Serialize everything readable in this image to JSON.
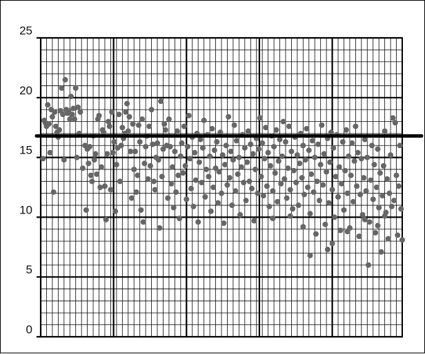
{
  "chart_data": {
    "type": "scatter",
    "title": "",
    "xlabel": "",
    "ylabel": "",
    "ylim": [
      0,
      25
    ],
    "xlim": [
      0,
      31
    ],
    "y_ticks": [
      "0",
      "5",
      "10",
      "15",
      "20",
      "25"
    ],
    "grid": true,
    "grid_minor_step_y": 1,
    "grid_minor_step_x": 0.5,
    "grid_major_step_x": 6.25,
    "reference_line_y": 16.8,
    "colors": {
      "points": "#666666",
      "grid_minor": "#000000",
      "grid_major": "#000000",
      "reference_line": "#000000"
    },
    "points": [
      [
        0.2,
        14.9
      ],
      [
        0.3,
        18.1
      ],
      [
        0.4,
        17.9
      ],
      [
        0.5,
        17.6
      ],
      [
        0.6,
        19.4
      ],
      [
        0.7,
        17.8
      ],
      [
        0.8,
        15.4
      ],
      [
        0.9,
        19.0
      ],
      [
        1.0,
        18.4
      ],
      [
        1.1,
        12.1
      ],
      [
        1.2,
        18.8
      ],
      [
        1.3,
        17.6
      ],
      [
        1.4,
        17.1
      ],
      [
        1.5,
        16.7
      ],
      [
        1.6,
        17.3
      ],
      [
        1.7,
        18.9
      ],
      [
        1.8,
        20.8
      ],
      [
        1.9,
        18.6
      ],
      [
        2.0,
        14.8
      ],
      [
        2.1,
        21.5
      ],
      [
        2.2,
        19.0
      ],
      [
        2.3,
        18.7
      ],
      [
        2.4,
        18.9
      ],
      [
        2.5,
        18.2
      ],
      [
        2.6,
        20.1
      ],
      [
        2.7,
        18.6
      ],
      [
        2.8,
        19.1
      ],
      [
        2.9,
        18.2
      ],
      [
        3.0,
        20.8
      ],
      [
        3.1,
        15.0
      ],
      [
        3.2,
        19.2
      ],
      [
        3.3,
        17.0
      ],
      [
        3.4,
        18.8
      ],
      [
        3.6,
        14.1
      ],
      [
        3.8,
        16.0
      ],
      [
        3.9,
        10.6
      ],
      [
        4.0,
        15.7
      ],
      [
        4.1,
        14.5
      ],
      [
        4.2,
        15.9
      ],
      [
        4.3,
        13.5
      ],
      [
        4.4,
        13.0
      ],
      [
        4.5,
        16.8
      ],
      [
        4.6,
        14.8
      ],
      [
        4.7,
        15.3
      ],
      [
        4.8,
        13.6
      ],
      [
        4.9,
        18.2
      ],
      [
        5.0,
        18.5
      ],
      [
        5.1,
        12.5
      ],
      [
        5.2,
        14.2
      ],
      [
        5.3,
        17.3
      ],
      [
        5.4,
        17.1
      ],
      [
        5.5,
        12.6
      ],
      [
        5.6,
        9.8
      ],
      [
        5.7,
        15.3
      ],
      [
        5.8,
        18.0
      ],
      [
        5.9,
        17.6
      ],
      [
        6.0,
        12.3
      ],
      [
        6.1,
        18.8
      ],
      [
        6.2,
        15.4
      ],
      [
        6.3,
        16.3
      ],
      [
        6.4,
        10.5
      ],
      [
        6.5,
        14.4
      ],
      [
        6.6,
        15.8
      ],
      [
        6.7,
        18.6
      ],
      [
        6.8,
        13.0
      ],
      [
        6.9,
        16.0
      ],
      [
        7.0,
        17.5
      ],
      [
        7.1,
        16.6
      ],
      [
        7.2,
        17.0
      ],
      [
        7.3,
        18.8
      ],
      [
        7.4,
        19.5
      ],
      [
        7.5,
        17.2
      ],
      [
        7.6,
        18.4
      ],
      [
        7.7,
        15.5
      ],
      [
        7.8,
        11.6
      ],
      [
        7.9,
        17.8
      ],
      [
        8.0,
        14.0
      ],
      [
        8.1,
        15.5
      ],
      [
        8.2,
        12.1
      ],
      [
        8.3,
        13.5
      ],
      [
        8.4,
        17.7
      ],
      [
        8.5,
        16.3
      ],
      [
        8.6,
        10.6
      ],
      [
        8.7,
        18.2
      ],
      [
        8.8,
        9.6
      ],
      [
        8.9,
        14.5
      ],
      [
        9.0,
        15.9
      ],
      [
        9.1,
        16.8
      ],
      [
        9.2,
        13.2
      ],
      [
        9.3,
        17.6
      ],
      [
        9.4,
        14.3
      ],
      [
        9.5,
        19.0
      ],
      [
        9.6,
        16.1
      ],
      [
        9.7,
        13.0
      ],
      [
        9.8,
        12.3
      ],
      [
        9.9,
        15.0
      ],
      [
        10.0,
        16.2
      ],
      [
        10.1,
        14.8
      ],
      [
        10.2,
        9.1
      ],
      [
        10.3,
        19.7
      ],
      [
        10.4,
        13.4
      ],
      [
        10.5,
        15.7
      ],
      [
        10.6,
        17.8
      ],
      [
        10.7,
        17.3
      ],
      [
        10.8,
        16.0
      ],
      [
        10.9,
        11.6
      ],
      [
        11.0,
        18.2
      ],
      [
        11.1,
        15.9
      ],
      [
        11.2,
        12.8
      ],
      [
        11.3,
        14.2
      ],
      [
        11.4,
        10.8
      ],
      [
        11.5,
        15.5
      ],
      [
        11.6,
        12.1
      ],
      [
        11.7,
        17.2
      ],
      [
        11.8,
        13.5
      ],
      [
        11.9,
        9.9
      ],
      [
        12.0,
        15.1
      ],
      [
        12.1,
        16.2
      ],
      [
        12.2,
        13.7
      ],
      [
        12.3,
        17.6
      ],
      [
        12.4,
        14.3
      ],
      [
        12.5,
        11.5
      ],
      [
        12.6,
        15.9
      ],
      [
        12.7,
        18.5
      ],
      [
        12.8,
        14.9
      ],
      [
        12.9,
        12.4
      ],
      [
        13.0,
        16.7
      ],
      [
        13.1,
        10.9
      ],
      [
        13.2,
        15.4
      ],
      [
        13.3,
        13.1
      ],
      [
        13.4,
        17.0
      ],
      [
        13.5,
        9.6
      ],
      [
        13.6,
        14.6
      ],
      [
        13.7,
        16.5
      ],
      [
        13.8,
        12.9
      ],
      [
        13.9,
        15.8
      ],
      [
        14.0,
        18.1
      ],
      [
        14.1,
        11.7
      ],
      [
        14.2,
        14.0
      ],
      [
        14.3,
        16.9
      ],
      [
        14.4,
        13.4
      ],
      [
        14.5,
        15.1
      ],
      [
        14.6,
        10.5
      ],
      [
        14.7,
        17.4
      ],
      [
        14.8,
        12.5
      ],
      [
        14.9,
        15.6
      ],
      [
        15.0,
        14.1
      ],
      [
        15.1,
        16.3
      ],
      [
        15.2,
        11.2
      ],
      [
        15.3,
        13.8
      ],
      [
        15.4,
        17.1
      ],
      [
        15.5,
        12.0
      ],
      [
        15.6,
        15.2
      ],
      [
        15.7,
        9.5
      ],
      [
        15.8,
        14.4
      ],
      [
        15.9,
        16.0
      ],
      [
        16.0,
        12.7
      ],
      [
        16.1,
        18.4
      ],
      [
        16.2,
        13.3
      ],
      [
        16.3,
        15.5
      ],
      [
        16.4,
        11.0
      ],
      [
        16.5,
        14.8
      ],
      [
        16.6,
        17.7
      ],
      [
        16.7,
        12.2
      ],
      [
        16.8,
        16.4
      ],
      [
        16.9,
        13.6
      ],
      [
        17.0,
        15.0
      ],
      [
        17.1,
        10.2
      ],
      [
        17.2,
        14.2
      ],
      [
        17.3,
        16.9
      ],
      [
        17.4,
        12.9
      ],
      [
        17.5,
        15.8
      ],
      [
        17.6,
        11.4
      ],
      [
        17.7,
        14.6
      ],
      [
        17.8,
        17.2
      ],
      [
        17.9,
        13.0
      ],
      [
        18.0,
        16.1
      ],
      [
        18.1,
        12.4
      ],
      [
        18.2,
        15.3
      ],
      [
        18.3,
        9.7
      ],
      [
        18.4,
        14.0
      ],
      [
        18.5,
        16.6
      ],
      [
        18.6,
        12.0
      ],
      [
        18.7,
        15.7
      ],
      [
        18.8,
        18.3
      ],
      [
        18.9,
        13.4
      ],
      [
        19.0,
        16.2
      ],
      [
        19.1,
        11.8
      ],
      [
        19.2,
        14.9
      ],
      [
        19.3,
        17.5
      ],
      [
        19.4,
        12.6
      ],
      [
        19.5,
        15.4
      ],
      [
        19.6,
        10.9
      ],
      [
        19.7,
        14.3
      ],
      [
        19.8,
        16.8
      ],
      [
        19.9,
        12.2
      ],
      [
        20.0,
        15.9
      ],
      [
        20.1,
        13.7
      ],
      [
        20.2,
        17.3
      ],
      [
        20.3,
        11.3
      ],
      [
        20.4,
        14.7
      ],
      [
        20.5,
        16.5
      ],
      [
        20.6,
        12.8
      ],
      [
        20.7,
        15.1
      ],
      [
        20.8,
        18.0
      ],
      [
        20.9,
        13.2
      ],
      [
        21.0,
        16.3
      ],
      [
        21.1,
        11.6
      ],
      [
        21.2,
        14.1
      ],
      [
        21.3,
        17.6
      ],
      [
        21.4,
        12.3
      ],
      [
        21.5,
        15.5
      ],
      [
        21.6,
        10.7
      ],
      [
        21.7,
        13.9
      ],
      [
        21.8,
        16.7
      ],
      [
        21.9,
        12.9
      ],
      [
        22.0,
        15.2
      ],
      [
        22.1,
        11.0
      ],
      [
        22.2,
        14.5
      ],
      [
        22.3,
        17.0
      ],
      [
        22.4,
        13.3
      ],
      [
        22.5,
        16.0
      ],
      [
        22.6,
        11.9
      ],
      [
        22.7,
        14.8
      ],
      [
        22.8,
        17.4
      ],
      [
        22.9,
        12.5
      ],
      [
        23.0,
        15.6
      ],
      [
        23.1,
        10.3
      ],
      [
        23.2,
        13.6
      ],
      [
        23.3,
        16.4
      ],
      [
        23.4,
        12.1
      ],
      [
        23.5,
        15.0
      ],
      [
        23.6,
        8.6
      ],
      [
        23.7,
        13.0
      ],
      [
        23.8,
        16.1
      ],
      [
        23.9,
        11.4
      ],
      [
        24.0,
        14.4
      ],
      [
        24.1,
        17.7
      ],
      [
        24.2,
        12.7
      ],
      [
        24.3,
        15.3
      ],
      [
        24.4,
        9.4
      ],
      [
        24.5,
        13.8
      ],
      [
        24.6,
        16.6
      ],
      [
        24.7,
        11.2
      ],
      [
        24.8,
        14.6
      ],
      [
        24.9,
        17.1
      ],
      [
        25.0,
        12.3
      ],
      [
        25.1,
        15.8
      ],
      [
        25.2,
        10.0
      ],
      [
        25.3,
        13.4
      ],
      [
        25.4,
        16.9
      ],
      [
        25.5,
        11.7
      ],
      [
        25.6,
        14.2
      ],
      [
        25.7,
        8.9
      ],
      [
        25.8,
        12.8
      ],
      [
        25.9,
        16.3
      ],
      [
        26.0,
        10.6
      ],
      [
        26.1,
        13.9
      ],
      [
        26.2,
        17.3
      ],
      [
        26.3,
        12.0
      ],
      [
        26.4,
        15.1
      ],
      [
        26.5,
        9.1
      ],
      [
        26.6,
        13.5
      ],
      [
        26.7,
        16.2
      ],
      [
        26.8,
        11.3
      ],
      [
        26.9,
        14.7
      ],
      [
        27.0,
        17.6
      ],
      [
        27.1,
        12.6
      ],
      [
        27.2,
        15.4
      ],
      [
        27.3,
        8.4
      ],
      [
        27.4,
        11.9
      ],
      [
        27.5,
        14.9
      ],
      [
        27.6,
        10.2
      ],
      [
        27.7,
        13.3
      ],
      [
        27.8,
        16.5
      ],
      [
        27.9,
        12.2
      ],
      [
        28.0,
        15.0
      ],
      [
        28.1,
        6.0
      ],
      [
        28.2,
        9.6
      ],
      [
        28.3,
        13.1
      ],
      [
        28.4,
        16.0
      ],
      [
        28.5,
        11.5
      ],
      [
        28.6,
        14.4
      ],
      [
        28.7,
        8.7
      ],
      [
        28.8,
        12.5
      ],
      [
        28.9,
        15.7
      ],
      [
        29.0,
        10.8
      ],
      [
        29.1,
        13.7
      ],
      [
        29.2,
        7.1
      ],
      [
        29.3,
        11.8
      ],
      [
        29.4,
        14.3
      ],
      [
        29.5,
        17.2
      ],
      [
        29.6,
        10.4
      ],
      [
        29.7,
        13.2
      ],
      [
        29.8,
        8.2
      ],
      [
        29.9,
        12.0
      ],
      [
        30.0,
        15.2
      ],
      [
        30.1,
        10.9
      ],
      [
        30.2,
        18.3
      ],
      [
        30.3,
        11.4
      ],
      [
        30.4,
        17.9
      ],
      [
        30.5,
        13.5
      ],
      [
        30.6,
        8.5
      ],
      [
        30.7,
        12.6
      ],
      [
        30.8,
        16.0
      ],
      [
        30.9,
        10.7
      ],
      [
        31.0,
        8.1
      ],
      [
        29.5,
        10.1
      ],
      [
        28.9,
        9.3
      ],
      [
        27.8,
        9.8
      ],
      [
        26.3,
        8.8
      ],
      [
        25.0,
        7.8
      ],
      [
        24.6,
        7.3
      ],
      [
        23.1,
        6.8
      ],
      [
        22.5,
        9.2
      ],
      [
        21.4,
        10.1
      ],
      [
        19.9,
        9.9
      ]
    ]
  }
}
